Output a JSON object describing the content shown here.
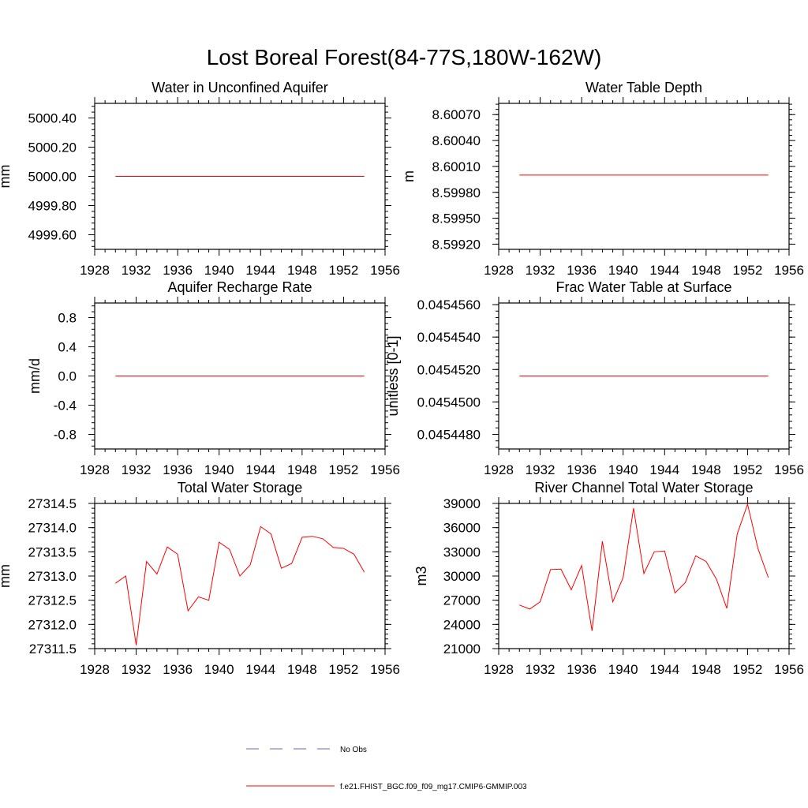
{
  "title": "Lost Boreal Forest(84-77S,180W-162W)",
  "colors": {
    "model": "#ff0000",
    "obs": "#6666aa"
  },
  "legend": {
    "obs_label": "No Obs",
    "model_label": "f.e21.FHIST_BGC.f09_f09_mg17.CMIP6-GMMIP.003"
  },
  "chart_data": [
    {
      "type": "line",
      "title": "Water in Unconfined Aquifer",
      "ylabel": "mm",
      "xlim": [
        1928,
        1956
      ],
      "ylim": [
        4999.5,
        5000.5
      ],
      "xticks": [
        1928,
        1932,
        1936,
        1940,
        1944,
        1948,
        1952,
        1956
      ],
      "yticks": [
        4999.6,
        4999.8,
        5000.0,
        5000.2,
        5000.4
      ],
      "ytick_labels": [
        "4999.60",
        "4999.80",
        "5000.00",
        "5000.20",
        "5000.40"
      ],
      "x": [
        1930,
        1931,
        1932,
        1933,
        1934,
        1935,
        1936,
        1937,
        1938,
        1939,
        1940,
        1941,
        1942,
        1943,
        1944,
        1945,
        1946,
        1947,
        1948,
        1949,
        1950,
        1951,
        1952,
        1953,
        1954
      ],
      "values": [
        5000,
        5000,
        5000,
        5000,
        5000,
        5000,
        5000,
        5000,
        5000,
        5000,
        5000,
        5000,
        5000,
        5000,
        5000,
        5000,
        5000,
        5000,
        5000,
        5000,
        5000,
        5000,
        5000,
        5000,
        5000
      ]
    },
    {
      "type": "line",
      "title": "Water Table Depth",
      "ylabel": "m",
      "xlim": [
        1928,
        1956
      ],
      "ylim": [
        8.59914,
        8.60083
      ],
      "xticks": [
        1928,
        1932,
        1936,
        1940,
        1944,
        1948,
        1952,
        1956
      ],
      "yticks": [
        8.5992,
        8.5995,
        8.5998,
        8.6001,
        8.6004,
        8.6007
      ],
      "ytick_labels": [
        "8.59920",
        "8.59950",
        "8.59980",
        "8.60010",
        "8.60040",
        "8.60070"
      ],
      "x": [
        1930,
        1931,
        1932,
        1933,
        1934,
        1935,
        1936,
        1937,
        1938,
        1939,
        1940,
        1941,
        1942,
        1943,
        1944,
        1945,
        1946,
        1947,
        1948,
        1949,
        1950,
        1951,
        1952,
        1953,
        1954
      ],
      "values": [
        8.6,
        8.6,
        8.6,
        8.6,
        8.6,
        8.6,
        8.6,
        8.6,
        8.6,
        8.6,
        8.6,
        8.6,
        8.6,
        8.6,
        8.6,
        8.6,
        8.6,
        8.6,
        8.6,
        8.6,
        8.6,
        8.6,
        8.6,
        8.6,
        8.6
      ]
    },
    {
      "type": "line",
      "title": "Aquifer Recharge Rate",
      "ylabel": "mm/d",
      "xlim": [
        1928,
        1956
      ],
      "ylim": [
        -1.0,
        1.0
      ],
      "xticks": [
        1928,
        1932,
        1936,
        1940,
        1944,
        1948,
        1952,
        1956
      ],
      "yticks": [
        -0.8,
        -0.4,
        0.0,
        0.4,
        0.8
      ],
      "ytick_labels": [
        "-0.8",
        "-0.4",
        "0.0",
        "0.4",
        "0.8"
      ],
      "x": [
        1930,
        1931,
        1932,
        1933,
        1934,
        1935,
        1936,
        1937,
        1938,
        1939,
        1940,
        1941,
        1942,
        1943,
        1944,
        1945,
        1946,
        1947,
        1948,
        1949,
        1950,
        1951,
        1952,
        1953,
        1954
      ],
      "values": [
        0,
        0,
        0,
        0,
        0,
        0,
        0,
        0,
        0,
        0,
        0,
        0,
        0,
        0,
        0,
        0,
        0,
        0,
        0,
        0,
        0,
        0,
        0,
        0,
        0
      ]
    },
    {
      "type": "line",
      "title": "Frac Water Table at Surface",
      "ylabel": "unitless [0-1]",
      "xlim": [
        1928,
        1956
      ],
      "ylim": [
        0.0454471,
        0.0454561
      ],
      "xticks": [
        1928,
        1932,
        1936,
        1940,
        1944,
        1948,
        1952,
        1956
      ],
      "yticks": [
        0.045448,
        0.04545,
        0.045452,
        0.045454,
        0.045456
      ],
      "ytick_labels": [
        "0.0454480",
        "0.0454500",
        "0.0454520",
        "0.0454540",
        "0.0454560"
      ],
      "x": [
        1930,
        1931,
        1932,
        1933,
        1934,
        1935,
        1936,
        1937,
        1938,
        1939,
        1940,
        1941,
        1942,
        1943,
        1944,
        1945,
        1946,
        1947,
        1948,
        1949,
        1950,
        1951,
        1952,
        1953,
        1954
      ],
      "values": [
        0.0454516,
        0.0454516,
        0.0454516,
        0.0454516,
        0.0454516,
        0.0454516,
        0.0454516,
        0.0454516,
        0.0454516,
        0.0454516,
        0.0454516,
        0.0454516,
        0.0454516,
        0.0454516,
        0.0454516,
        0.0454516,
        0.0454516,
        0.0454516,
        0.0454516,
        0.0454516,
        0.0454516,
        0.0454516,
        0.0454516,
        0.0454516,
        0.0454516
      ]
    },
    {
      "type": "line",
      "title": "Total Water Storage",
      "ylabel": "mm",
      "xlim": [
        1928,
        1956
      ],
      "ylim": [
        27311.5,
        27314.5
      ],
      "xticks": [
        1928,
        1932,
        1936,
        1940,
        1944,
        1948,
        1952,
        1956
      ],
      "yticks": [
        27311.5,
        27312.0,
        27312.5,
        27313.0,
        27313.5,
        27314.0,
        27314.5
      ],
      "ytick_labels": [
        "27311.5",
        "27312.0",
        "27312.5",
        "27313.0",
        "27313.5",
        "27314.0",
        "27314.5"
      ],
      "x": [
        1930,
        1931,
        1932,
        1933,
        1934,
        1935,
        1936,
        1937,
        1938,
        1939,
        1940,
        1941,
        1942,
        1943,
        1944,
        1945,
        1946,
        1947,
        1948,
        1949,
        1950,
        1951,
        1952,
        1953,
        1954
      ],
      "values": [
        27312.85,
        27313.0,
        27311.57,
        27313.3,
        27313.04,
        27313.6,
        27313.45,
        27312.28,
        27312.57,
        27312.5,
        27313.7,
        27313.55,
        27313.0,
        27313.23,
        27314.02,
        27313.87,
        27313.16,
        27313.26,
        27313.8,
        27313.82,
        27313.77,
        27313.59,
        27313.57,
        27313.45,
        27313.08
      ]
    },
    {
      "type": "line",
      "title": "River Channel Total Water Storage",
      "ylabel": "m3",
      "xlim": [
        1928,
        1956
      ],
      "ylim": [
        21000,
        39000
      ],
      "xticks": [
        1928,
        1932,
        1936,
        1940,
        1944,
        1948,
        1952,
        1956
      ],
      "yticks": [
        21000,
        24000,
        27000,
        30000,
        33000,
        36000,
        39000
      ],
      "ytick_labels": [
        "21000",
        "24000",
        "27000",
        "30000",
        "33000",
        "36000",
        "39000"
      ],
      "x": [
        1930,
        1931,
        1932,
        1933,
        1934,
        1935,
        1936,
        1937,
        1938,
        1939,
        1940,
        1941,
        1942,
        1943,
        1944,
        1945,
        1946,
        1947,
        1948,
        1949,
        1950,
        1951,
        1952,
        1953,
        1954
      ],
      "values": [
        26400,
        25900,
        26800,
        30800,
        30850,
        28300,
        31300,
        23200,
        34300,
        26800,
        29800,
        38400,
        30300,
        33000,
        33100,
        27900,
        29200,
        32500,
        31800,
        29600,
        26000,
        35200,
        38900,
        33400,
        29800
      ]
    }
  ]
}
